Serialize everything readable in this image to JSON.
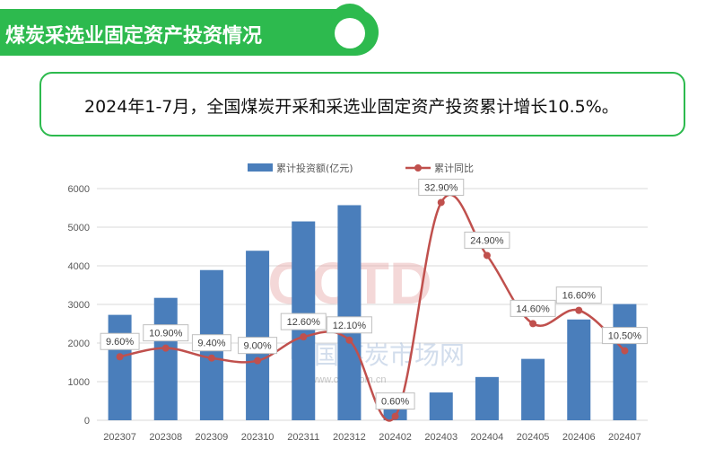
{
  "header": {
    "title": "煤炭采选业固定资产投资情况"
  },
  "summary": {
    "text": "2024年1-7月，全国煤炭开采和采选业固定资产投资累计增长10.5%。"
  },
  "watermark": {
    "logo": "CCTD",
    "name": "中国煤炭市场网",
    "url": "www.cctd.com.cn"
  },
  "colors": {
    "accent": "#2dba4e",
    "bar": "#4a7ebb",
    "line": "#c0504d"
  },
  "chart_data": {
    "type": "bar",
    "categories": [
      "202307",
      "202308",
      "202309",
      "202310",
      "202311",
      "202312",
      "202402",
      "202403",
      "202404",
      "202405",
      "202406",
      "202407"
    ],
    "series": [
      {
        "name": "累计投资额(亿元)",
        "type": "bar",
        "axis": "left",
        "values": [
          2730,
          3170,
          3890,
          4390,
          5150,
          5570,
          380,
          720,
          1120,
          1590,
          2610,
          3010
        ]
      },
      {
        "name": "累计同比",
        "type": "line",
        "axis": "right",
        "values": [
          9.6,
          10.9,
          9.4,
          9.0,
          12.6,
          12.1,
          0.6,
          32.9,
          24.9,
          14.6,
          16.6,
          10.5
        ],
        "labels": [
          "9.60%",
          "10.90%",
          "9.40%",
          "9.00%",
          "12.60%",
          "12.10%",
          "0.60%",
          "32.90%",
          "24.90%",
          "14.60%",
          "16.60%",
          "10.50%"
        ]
      }
    ],
    "y_left": {
      "ylim": [
        0,
        6000
      ],
      "ticks": [
        "0",
        "1000",
        "2000",
        "3000",
        "4000",
        "5000",
        "6000"
      ]
    },
    "y_right_hidden_range": [
      0,
      35
    ],
    "legend": "top-center",
    "grid": true
  }
}
